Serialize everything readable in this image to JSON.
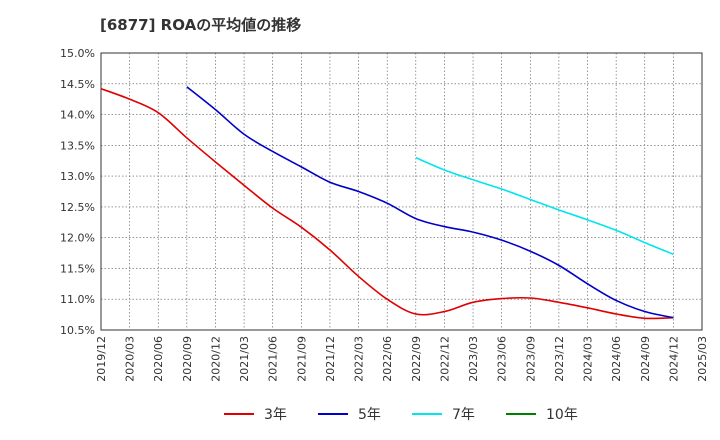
{
  "chart_data": {
    "type": "line",
    "title": "[6877]  ROAの平均値の推移",
    "xlabel": "",
    "ylabel": "",
    "ylim": [
      10.5,
      15.0
    ],
    "y_ticks": [
      "10.5%",
      "11.0%",
      "11.5%",
      "12.0%",
      "12.5%",
      "13.0%",
      "13.5%",
      "14.0%",
      "14.5%",
      "15.0%"
    ],
    "x_ticks": [
      "2019/12",
      "2020/03",
      "2020/06",
      "2020/09",
      "2020/12",
      "2021/03",
      "2021/06",
      "2021/09",
      "2021/12",
      "2022/03",
      "2022/06",
      "2022/09",
      "2022/12",
      "2023/03",
      "2023/06",
      "2023/09",
      "2023/12",
      "2024/03",
      "2024/06",
      "2024/09",
      "2024/12",
      "2025/03"
    ],
    "grid": true,
    "legend_position": "bottom",
    "series": [
      {
        "name": "3年",
        "color": "#e00000",
        "start_index": 0,
        "values": [
          14.42,
          14.25,
          14.03,
          13.62,
          13.23,
          12.85,
          12.48,
          12.17,
          11.8,
          11.37,
          11.0,
          10.76,
          10.8,
          10.95,
          11.01,
          11.02,
          10.95,
          10.86,
          10.76,
          10.69,
          10.7
        ]
      },
      {
        "name": "5年",
        "color": "#0000c8",
        "start_index": 3,
        "values": [
          14.45,
          14.08,
          13.68,
          13.4,
          13.15,
          12.9,
          12.75,
          12.56,
          12.31,
          12.18,
          12.09,
          11.96,
          11.78,
          11.55,
          11.25,
          10.98,
          10.8,
          10.7
        ]
      },
      {
        "name": "7年",
        "color": "#00e5ee",
        "start_index": 11,
        "values": [
          13.3,
          13.1,
          12.94,
          12.79,
          12.62,
          12.45,
          12.29,
          12.12,
          11.92,
          11.73
        ]
      },
      {
        "name": "10年",
        "color": "#008000",
        "start_index": 0,
        "values": []
      }
    ]
  }
}
